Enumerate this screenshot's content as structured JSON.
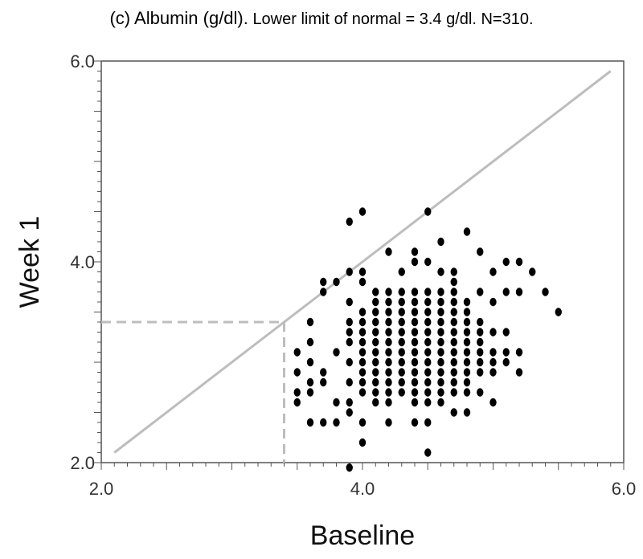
{
  "chart_data": {
    "type": "scatter",
    "title_main": "(c) Albumin (g/dl).",
    "title_sub": "Lower limit of normal = 3.4 g/dl. N=310.",
    "xlabel": "Baseline",
    "ylabel": "Week 1",
    "xlim": [
      2.0,
      6.0
    ],
    "ylim": [
      2.0,
      6.0
    ],
    "x_ticks": [
      "2.0",
      "4.0",
      "6.0"
    ],
    "y_ticks": [
      "2.0",
      "4.0",
      "6.0"
    ],
    "identity_line": {
      "from": [
        2.1,
        2.1
      ],
      "to": [
        5.9,
        5.9
      ],
      "color": "#bdbdbd"
    },
    "lower_limit_normal": {
      "value": 3.4,
      "color": "#bdbdbd",
      "style": "dashed"
    },
    "grid": false,
    "marker_color": "#000000",
    "points": [
      [
        3.5,
        3.1
      ],
      [
        3.5,
        2.9
      ],
      [
        3.5,
        2.7
      ],
      [
        3.5,
        2.6
      ],
      [
        3.6,
        3.4
      ],
      [
        3.6,
        3.2
      ],
      [
        3.6,
        3.0
      ],
      [
        3.6,
        2.8
      ],
      [
        3.6,
        2.7
      ],
      [
        3.6,
        2.4
      ],
      [
        3.7,
        3.8
      ],
      [
        3.7,
        3.7
      ],
      [
        3.7,
        2.9
      ],
      [
        3.7,
        2.8
      ],
      [
        3.7,
        2.4
      ],
      [
        3.8,
        3.8
      ],
      [
        3.8,
        3.1
      ],
      [
        3.8,
        2.6
      ],
      [
        3.8,
        2.4
      ],
      [
        3.9,
        4.4
      ],
      [
        3.9,
        3.9
      ],
      [
        3.9,
        3.6
      ],
      [
        3.9,
        3.4
      ],
      [
        3.9,
        3.3
      ],
      [
        3.9,
        3.2
      ],
      [
        3.9,
        3.0
      ],
      [
        3.9,
        2.8
      ],
      [
        3.9,
        2.6
      ],
      [
        3.9,
        2.5
      ],
      [
        3.9,
        1.95
      ],
      [
        4.0,
        4.5
      ],
      [
        4.0,
        3.9
      ],
      [
        4.0,
        3.8
      ],
      [
        4.0,
        3.5
      ],
      [
        4.0,
        3.4
      ],
      [
        4.0,
        3.3
      ],
      [
        4.0,
        3.2
      ],
      [
        4.0,
        3.1
      ],
      [
        4.0,
        3.0
      ],
      [
        4.0,
        2.9
      ],
      [
        4.0,
        2.8
      ],
      [
        4.0,
        2.7
      ],
      [
        4.0,
        2.4
      ],
      [
        4.0,
        2.2
      ],
      [
        4.1,
        3.7
      ],
      [
        4.1,
        3.6
      ],
      [
        4.1,
        3.5
      ],
      [
        4.1,
        3.4
      ],
      [
        4.1,
        3.3
      ],
      [
        4.1,
        3.2
      ],
      [
        4.1,
        3.1
      ],
      [
        4.1,
        3.0
      ],
      [
        4.1,
        2.9
      ],
      [
        4.1,
        2.8
      ],
      [
        4.1,
        2.7
      ],
      [
        4.1,
        2.6
      ],
      [
        4.2,
        4.1
      ],
      [
        4.2,
        3.7
      ],
      [
        4.2,
        3.6
      ],
      [
        4.2,
        3.5
      ],
      [
        4.2,
        3.4
      ],
      [
        4.2,
        3.3
      ],
      [
        4.2,
        3.2
      ],
      [
        4.2,
        3.1
      ],
      [
        4.2,
        3.0
      ],
      [
        4.2,
        2.9
      ],
      [
        4.2,
        2.8
      ],
      [
        4.2,
        2.7
      ],
      [
        4.2,
        2.6
      ],
      [
        4.2,
        2.4
      ],
      [
        4.3,
        3.9
      ],
      [
        4.3,
        3.7
      ],
      [
        4.3,
        3.6
      ],
      [
        4.3,
        3.5
      ],
      [
        4.3,
        3.4
      ],
      [
        4.3,
        3.3
      ],
      [
        4.3,
        3.2
      ],
      [
        4.3,
        3.1
      ],
      [
        4.3,
        3.0
      ],
      [
        4.3,
        2.9
      ],
      [
        4.3,
        2.8
      ],
      [
        4.3,
        2.7
      ],
      [
        4.4,
        4.1
      ],
      [
        4.4,
        4.0
      ],
      [
        4.4,
        3.7
      ],
      [
        4.4,
        3.6
      ],
      [
        4.4,
        3.5
      ],
      [
        4.4,
        3.4
      ],
      [
        4.4,
        3.3
      ],
      [
        4.4,
        3.2
      ],
      [
        4.4,
        3.1
      ],
      [
        4.4,
        3.0
      ],
      [
        4.4,
        2.9
      ],
      [
        4.4,
        2.8
      ],
      [
        4.4,
        2.7
      ],
      [
        4.4,
        2.6
      ],
      [
        4.4,
        2.4
      ],
      [
        4.5,
        4.5
      ],
      [
        4.5,
        4.0
      ],
      [
        4.5,
        3.7
      ],
      [
        4.5,
        3.6
      ],
      [
        4.5,
        3.5
      ],
      [
        4.5,
        3.4
      ],
      [
        4.5,
        3.3
      ],
      [
        4.5,
        3.2
      ],
      [
        4.5,
        3.1
      ],
      [
        4.5,
        3.0
      ],
      [
        4.5,
        2.9
      ],
      [
        4.5,
        2.8
      ],
      [
        4.5,
        2.7
      ],
      [
        4.5,
        2.6
      ],
      [
        4.5,
        2.4
      ],
      [
        4.5,
        2.1
      ],
      [
        4.6,
        4.2
      ],
      [
        4.6,
        3.9
      ],
      [
        4.6,
        3.7
      ],
      [
        4.6,
        3.6
      ],
      [
        4.6,
        3.5
      ],
      [
        4.6,
        3.4
      ],
      [
        4.6,
        3.3
      ],
      [
        4.6,
        3.2
      ],
      [
        4.6,
        3.1
      ],
      [
        4.6,
        3.0
      ],
      [
        4.6,
        2.9
      ],
      [
        4.6,
        2.8
      ],
      [
        4.6,
        2.7
      ],
      [
        4.6,
        2.6
      ],
      [
        4.7,
        3.9
      ],
      [
        4.7,
        3.8
      ],
      [
        4.7,
        3.7
      ],
      [
        4.7,
        3.6
      ],
      [
        4.7,
        3.5
      ],
      [
        4.7,
        3.4
      ],
      [
        4.7,
        3.3
      ],
      [
        4.7,
        3.2
      ],
      [
        4.7,
        3.1
      ],
      [
        4.7,
        3.0
      ],
      [
        4.7,
        2.9
      ],
      [
        4.7,
        2.8
      ],
      [
        4.7,
        2.7
      ],
      [
        4.7,
        2.5
      ],
      [
        4.8,
        4.3
      ],
      [
        4.8,
        3.6
      ],
      [
        4.8,
        3.5
      ],
      [
        4.8,
        3.4
      ],
      [
        4.8,
        3.3
      ],
      [
        4.8,
        3.2
      ],
      [
        4.8,
        3.1
      ],
      [
        4.8,
        3.0
      ],
      [
        4.8,
        2.9
      ],
      [
        4.8,
        2.8
      ],
      [
        4.8,
        2.7
      ],
      [
        4.8,
        2.5
      ],
      [
        4.9,
        4.1
      ],
      [
        4.9,
        3.7
      ],
      [
        4.9,
        3.4
      ],
      [
        4.9,
        3.3
      ],
      [
        4.9,
        3.2
      ],
      [
        4.9,
        3.1
      ],
      [
        4.9,
        3.0
      ],
      [
        4.9,
        2.9
      ],
      [
        4.9,
        2.7
      ],
      [
        5.0,
        3.9
      ],
      [
        5.0,
        3.6
      ],
      [
        5.0,
        3.3
      ],
      [
        5.0,
        3.1
      ],
      [
        5.0,
        3.0
      ],
      [
        5.0,
        2.9
      ],
      [
        5.0,
        2.6
      ],
      [
        5.1,
        4.0
      ],
      [
        5.1,
        3.7
      ],
      [
        5.1,
        3.3
      ],
      [
        5.1,
        3.1
      ],
      [
        5.1,
        3.0
      ],
      [
        5.2,
        4.0
      ],
      [
        5.2,
        3.7
      ],
      [
        5.2,
        3.1
      ],
      [
        5.2,
        2.9
      ],
      [
        5.3,
        3.9
      ],
      [
        5.4,
        3.7
      ],
      [
        5.5,
        3.5
      ]
    ]
  }
}
